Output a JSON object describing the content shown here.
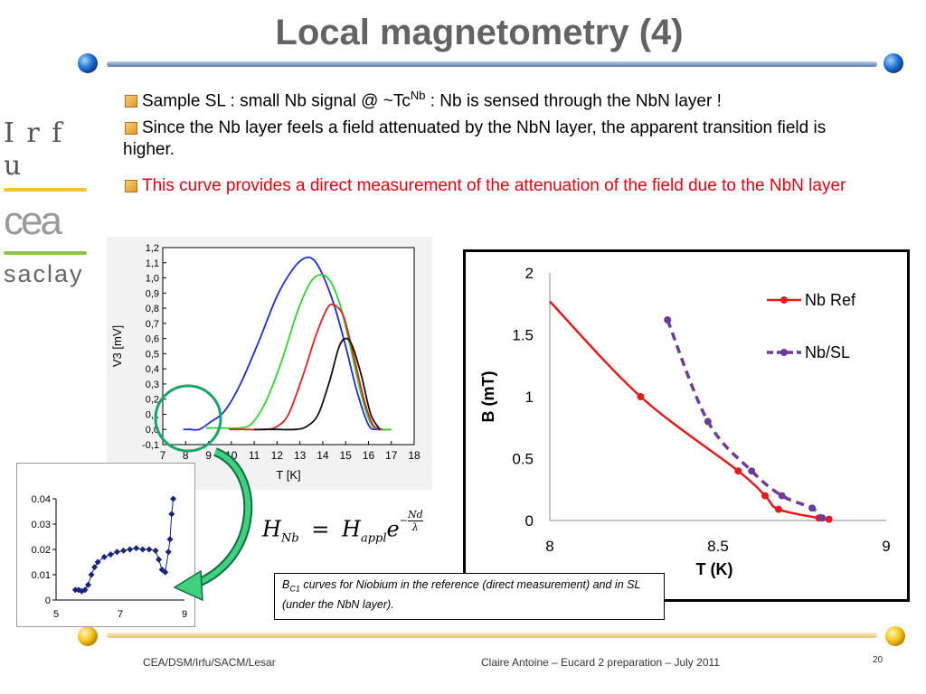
{
  "slide": {
    "title": "Local magnetometry (4)",
    "bullets": [
      {
        "text": "Sample SL : small Nb signal @ ~Tc",
        "sup": "Nb",
        "after": " : Nb is sensed through the NbN layer !"
      },
      {
        "text": "Since the Nb layer feels a field attenuated by the NbN layer, the apparent transition field is higher."
      },
      {
        "text": "This curve provides a direct measurement of the attenuation of the field due to the NbN layer"
      }
    ],
    "logo": {
      "irfu": "I r f u",
      "cea": "cea",
      "saclay": "saclay"
    },
    "formula": {
      "h": "H",
      "h_sub": "Nb",
      "eq": "=",
      "h2": "H",
      "h2_sub": "appl",
      "e": "e",
      "exp_sign": "−",
      "exp_num": "Nd",
      "exp_den": "λ"
    },
    "caption": {
      "b": "B",
      "sub": "C1",
      "text": " curves for Niobium in the reference (direct measurement) and in SL (under the NbN layer)."
    },
    "footer": {
      "left": "CEA/DSM/Irfu/SACM/Lesar",
      "center": "Claire Antoine – Eucard 2 preparation – July 2011",
      "page": "20"
    },
    "colors": {
      "title": "#636363",
      "red_text": "#e3000f",
      "ref": "#e41a1c",
      "sl": "#6a3d9a",
      "circle": "#1aa36b",
      "arrow": "#1aa36b"
    }
  },
  "chart_data": [
    {
      "type": "line",
      "ylabel": "V3 [mV]",
      "xlabel": "T [K]",
      "xlim": [
        7,
        18
      ],
      "ylim": [
        -0.1,
        1.2
      ],
      "x_ticks": [
        "7",
        "8",
        "9",
        "10",
        "11",
        "12",
        "13",
        "14",
        "15",
        "16",
        "17",
        "18"
      ],
      "y_ticks": [
        "-0,1",
        "0,0",
        "0,1",
        "0,2",
        "0,3",
        "0,4",
        "0,5",
        "0,6",
        "0,7",
        "0,8",
        "0,9",
        "1,0",
        "1,1",
        "1,2"
      ],
      "series": [
        {
          "color": "#1f2bd6",
          "x": [
            7.9,
            8.2,
            8.6,
            9.1,
            9.7,
            10.4,
            11.2,
            12.0,
            12.7,
            13.2,
            13.6,
            14.0,
            14.5,
            15.0,
            15.5,
            16.0,
            16.4,
            17.0
          ],
          "y": [
            0.0,
            0.0,
            0.0,
            0.05,
            0.12,
            0.3,
            0.58,
            0.88,
            1.06,
            1.13,
            1.12,
            1.02,
            0.82,
            0.55,
            0.25,
            0.03,
            0.0,
            0.0
          ]
        },
        {
          "color": "#2bd62b",
          "x": [
            8.9,
            9.5,
            10.4,
            10.9,
            11.5,
            12.2,
            12.9,
            13.5,
            14.0,
            14.4,
            14.8,
            15.2,
            15.7,
            16.1,
            16.5,
            17.0
          ],
          "y": [
            0.01,
            0.01,
            0.01,
            0.04,
            0.18,
            0.45,
            0.78,
            0.98,
            1.02,
            0.96,
            0.8,
            0.55,
            0.22,
            0.04,
            0.0,
            0.0
          ]
        },
        {
          "color": "#e01f1f",
          "x": [
            9.9,
            10.5,
            11.5,
            12.0,
            12.5,
            13.1,
            13.7,
            14.2,
            14.5,
            14.9,
            15.3,
            15.8,
            16.2,
            16.6
          ],
          "y": [
            0.0,
            0.0,
            0.0,
            0.02,
            0.1,
            0.34,
            0.62,
            0.8,
            0.82,
            0.75,
            0.52,
            0.2,
            0.03,
            0.0
          ]
        },
        {
          "color": "#111111",
          "x": [
            11.0,
            12.0,
            12.8,
            13.3,
            13.8,
            14.3,
            14.7,
            15.0,
            15.3,
            15.7,
            16.1,
            16.5
          ],
          "y": [
            0.0,
            0.0,
            0.0,
            0.02,
            0.1,
            0.32,
            0.54,
            0.6,
            0.55,
            0.35,
            0.1,
            0.0
          ]
        }
      ]
    },
    {
      "type": "scatter",
      "xlim": [
        5,
        9
      ],
      "ylim": [
        0,
        0.04
      ],
      "x_ticks": [
        "5",
        "7",
        "9"
      ],
      "y_ticks": [
        "0",
        "0.01",
        "0.02",
        "0.03",
        "0.04"
      ],
      "series": [
        {
          "color": "#1a237e",
          "x": [
            5.6,
            5.7,
            5.8,
            5.9,
            6.0,
            6.1,
            6.2,
            6.3,
            6.5,
            6.7,
            6.9,
            7.1,
            7.3,
            7.5,
            7.7,
            7.9,
            8.1,
            8.2,
            8.3,
            8.4,
            8.5,
            8.55,
            8.6,
            8.65
          ],
          "y": [
            0.004,
            0.004,
            0.0035,
            0.004,
            0.006,
            0.01,
            0.013,
            0.015,
            0.017,
            0.018,
            0.019,
            0.0195,
            0.02,
            0.0205,
            0.02,
            0.02,
            0.0195,
            0.016,
            0.012,
            0.011,
            0.019,
            0.024,
            0.034,
            0.04
          ]
        }
      ]
    },
    {
      "type": "line",
      "xlabel": "T (K)",
      "ylabel": "B (mT)",
      "xlim": [
        8,
        9
      ],
      "ylim": [
        0,
        2
      ],
      "x_ticks": [
        "8",
        "8.5",
        "9"
      ],
      "y_ticks": [
        "0",
        "0.5",
        "1",
        "1.5",
        "2"
      ],
      "legend_position": "top-right",
      "series": [
        {
          "name": "Nb Ref",
          "color": "#e41a1c",
          "style": "solid",
          "x": [
            8.0,
            8.27,
            8.56,
            8.64,
            8.68,
            8.8,
            8.83
          ],
          "y": [
            1.77,
            1.0,
            0.4,
            0.2,
            0.09,
            0.02,
            0.01
          ]
        },
        {
          "name": "Nb/SL",
          "color": "#6a3d9a",
          "style": "dashed",
          "x": [
            8.35,
            8.47,
            8.6,
            8.69,
            8.78,
            8.81
          ],
          "y": [
            1.62,
            0.8,
            0.4,
            0.2,
            0.1,
            0.02
          ]
        }
      ]
    }
  ]
}
